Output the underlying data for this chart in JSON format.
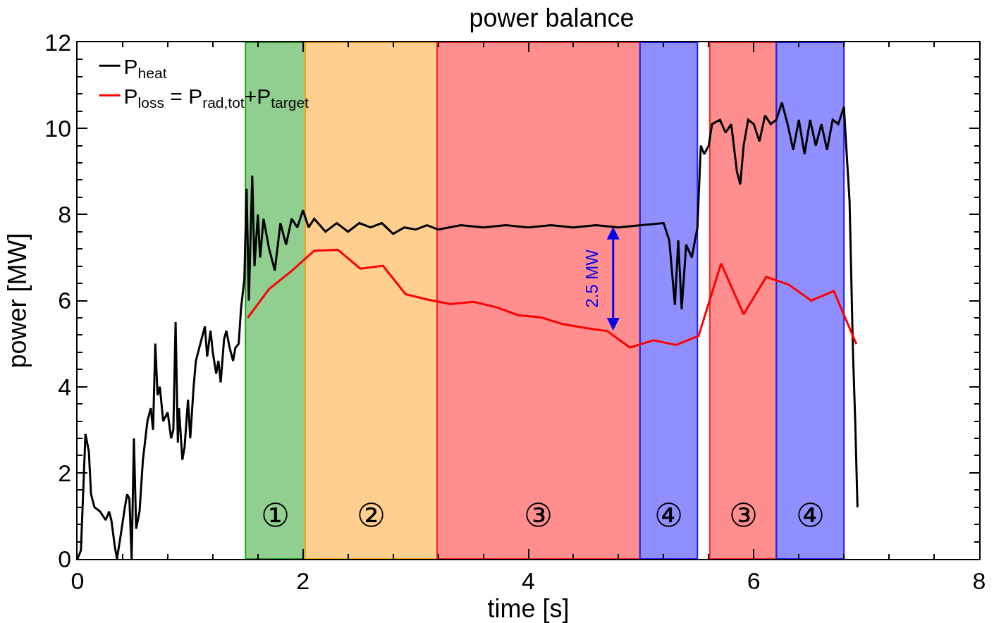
{
  "chart_data": {
    "type": "line",
    "title": "power balance",
    "xlabel": "time [s]",
    "ylabel": "power [MW]",
    "xlim": [
      0,
      8
    ],
    "xticks": [
      0,
      2,
      4,
      6,
      8
    ],
    "ylim": [
      0,
      12
    ],
    "yticks": [
      0,
      2,
      4,
      6,
      8,
      10,
      12
    ],
    "grid": false,
    "legend": "top left",
    "marker": "none",
    "line_style": "solid",
    "series": [
      {
        "name": "P$_{heat}$",
        "color": "#000000",
        "x": [
          0.0,
          0.03,
          0.07,
          0.1,
          0.12,
          0.15,
          0.2,
          0.25,
          0.28,
          0.3,
          0.33,
          0.35,
          0.38,
          0.42,
          0.44,
          0.46,
          0.48,
          0.5,
          0.52,
          0.55,
          0.58,
          0.62,
          0.65,
          0.67,
          0.69,
          0.71,
          0.73,
          0.76,
          0.8,
          0.83,
          0.85,
          0.87,
          0.89,
          0.9,
          0.93,
          0.95,
          0.98,
          1.0,
          1.03,
          1.05,
          1.08,
          1.1,
          1.13,
          1.15,
          1.18,
          1.2,
          1.23,
          1.25,
          1.27,
          1.3,
          1.32,
          1.35,
          1.38,
          1.4,
          1.43,
          1.45,
          1.48,
          1.5,
          1.52,
          1.55,
          1.57,
          1.6,
          1.62,
          1.65,
          1.7,
          1.75,
          1.8,
          1.85,
          1.9,
          1.95,
          2.0,
          2.05,
          2.1,
          2.2,
          2.3,
          2.4,
          2.5,
          2.6,
          2.7,
          2.8,
          2.9,
          3.0,
          3.1,
          3.2,
          3.4,
          3.6,
          3.8,
          4.0,
          4.2,
          4.4,
          4.6,
          4.8,
          5.0,
          5.2,
          5.25,
          5.3,
          5.33,
          5.36,
          5.4,
          5.45,
          5.5,
          5.53,
          5.56,
          5.6,
          5.63,
          5.7,
          5.75,
          5.8,
          5.85,
          5.88,
          5.91,
          5.95,
          6.0,
          6.05,
          6.1,
          6.15,
          6.2,
          6.25,
          6.3,
          6.35,
          6.4,
          6.45,
          6.5,
          6.55,
          6.6,
          6.65,
          6.7,
          6.75,
          6.8,
          6.82,
          6.85,
          6.88,
          6.9,
          6.92
        ],
        "values": [
          0,
          0.2,
          2.9,
          2.5,
          1.5,
          1.2,
          1.1,
          0.9,
          1.1,
          0.9,
          0.3,
          0,
          0.5,
          1.2,
          1.5,
          1.4,
          0,
          2.8,
          0.7,
          1.1,
          2.3,
          3.2,
          3.5,
          3.0,
          5.0,
          3.8,
          4.0,
          3.2,
          3.4,
          2.8,
          3.0,
          5.5,
          2.7,
          3.5,
          2.3,
          2.6,
          3.7,
          2.8,
          4.0,
          4.6,
          4.9,
          5.1,
          5.4,
          4.7,
          5.3,
          4.8,
          4.3,
          4.6,
          4.1,
          5.1,
          5.3,
          4.9,
          4.6,
          4.9,
          5.0,
          5.8,
          6.5,
          8.6,
          6.0,
          8.9,
          6.8,
          8.0,
          7.0,
          7.9,
          7.2,
          6.7,
          7.8,
          7.3,
          7.9,
          7.7,
          8.1,
          7.7,
          7.9,
          7.6,
          7.8,
          7.6,
          7.8,
          7.7,
          7.8,
          7.55,
          7.7,
          7.65,
          7.75,
          7.65,
          7.75,
          7.7,
          7.75,
          7.7,
          7.75,
          7.7,
          7.75,
          7.7,
          7.75,
          7.8,
          7.4,
          5.9,
          7.4,
          5.8,
          7.3,
          7.0,
          7.7,
          9.6,
          9.4,
          9.6,
          10.1,
          10.2,
          9.9,
          10.1,
          9.0,
          8.7,
          9.6,
          10.2,
          10.1,
          9.7,
          10.3,
          10.1,
          10.2,
          10.6,
          10.1,
          9.5,
          10.2,
          9.4,
          10.2,
          9.6,
          10.1,
          9.5,
          10.2,
          10.1,
          10.5,
          9.6,
          8.3,
          4.8,
          3.2,
          1.2
        ]
      },
      {
        "name": "P$_{loss}$ = P$_{rad,tot}$+P$_{target}$",
        "color": "#ff0000",
        "x": [
          1.51,
          1.7,
          1.9,
          2.1,
          2.31,
          2.51,
          2.71,
          2.91,
          3.11,
          3.31,
          3.51,
          3.71,
          3.91,
          4.11,
          4.31,
          4.51,
          4.7,
          4.9,
          5.11,
          5.31,
          5.51,
          5.71,
          5.91,
          6.11,
          6.31,
          6.51,
          6.71,
          6.91
        ],
        "values": [
          5.6,
          6.27,
          6.69,
          7.16,
          7.18,
          6.74,
          6.81,
          6.15,
          6.02,
          5.92,
          5.97,
          5.85,
          5.66,
          5.61,
          5.45,
          5.36,
          5.29,
          4.91,
          5.08,
          4.97,
          5.18,
          6.86,
          5.68,
          6.55,
          6.37,
          6.0,
          6.22,
          4.99
        ]
      }
    ],
    "bands": [
      {
        "axis": "x",
        "from": 1.49,
        "to": 2.02,
        "label": "①",
        "color": "#22a022"
      },
      {
        "axis": "x",
        "from": 2.02,
        "to": 3.19,
        "label": "②",
        "color": "#ffa020"
      },
      {
        "axis": "x",
        "from": 3.19,
        "to": 4.99,
        "label": "③",
        "color": "#ff2020"
      },
      {
        "axis": "x",
        "from": 4.99,
        "to": 5.5,
        "label": "④",
        "color": "#2020ff"
      },
      {
        "axis": "x",
        "from": 5.61,
        "to": 6.2,
        "label": "③",
        "color": "#ff2020"
      },
      {
        "axis": "x",
        "from": 6.2,
        "to": 6.8,
        "label": "④",
        "color": "#2020ff"
      }
    ],
    "annotations": [
      "2.5 MW"
    ]
  }
}
